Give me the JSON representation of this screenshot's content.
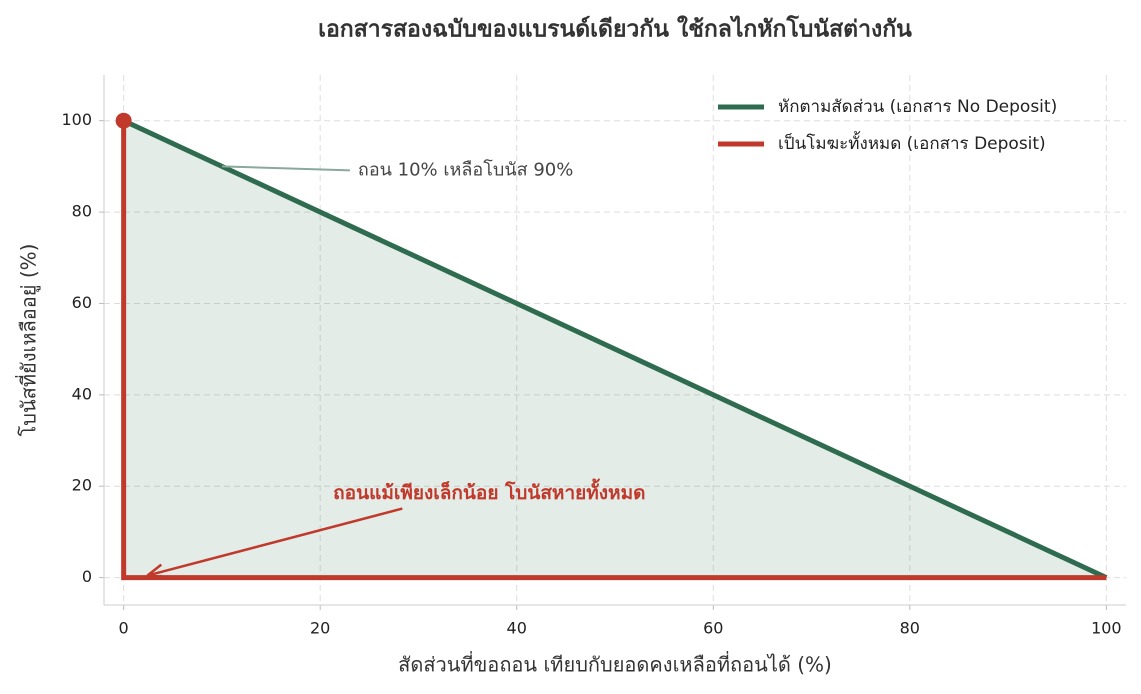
{
  "chart_data": {
    "type": "line",
    "title": "เอกสารสองฉบับของแบรนด์เดียวกัน ใช้กลไกหักโบนัสต่างกัน",
    "xlabel": "สัดส่วนที่ขอถอน เทียบกับยอดคงเหลือที่ถอนได้ (%)",
    "ylabel": "โบนัสที่ยังเหลืออยู่ (%)",
    "xlim": [
      -2,
      102
    ],
    "ylim": [
      -6,
      110
    ],
    "xticks": [
      0,
      20,
      40,
      60,
      80,
      100
    ],
    "yticks": [
      0,
      20,
      40,
      60,
      80,
      100
    ],
    "grid": true,
    "legend": "upper right",
    "series": [
      {
        "name": "หักตามสัดส่วน (เอกสาร No Deposit)",
        "color": "#2e6b4f",
        "fill": true,
        "x": [
          0,
          100
        ],
        "values": [
          100,
          0
        ]
      },
      {
        "name": "เป็นโมฆะทั้งหมด (เอกสาร Deposit)",
        "color": "#c0392b",
        "fill": false,
        "x": [
          0,
          0,
          100
        ],
        "values": [
          100,
          0,
          0
        ]
      }
    ],
    "annotations": [
      {
        "text": "ถอน 10% เหลือโบนัส 90%",
        "xy": [
          10,
          90
        ],
        "color": "#444"
      },
      {
        "text": "ถอนแม้เพียงเล็กน้อย โบนัสหายทั้งหมด",
        "xy": [
          2,
          0
        ],
        "color": "#c0392b"
      }
    ]
  }
}
